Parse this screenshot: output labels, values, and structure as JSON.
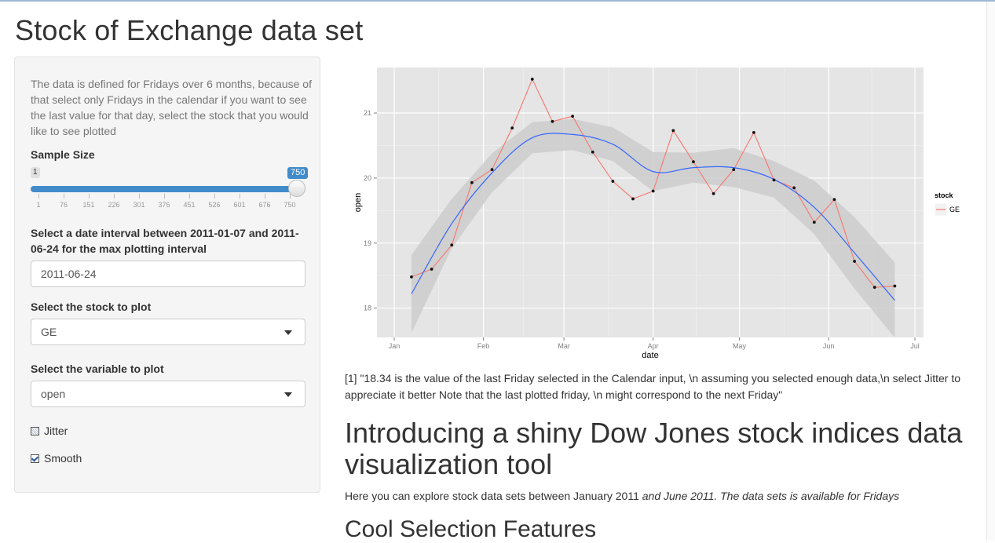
{
  "page": {
    "title": "Stock of Exchange data set"
  },
  "sidebar": {
    "description": "The data is defined for Fridays over 6 months, because of that select only Fridays in the calendar if you want to see the last value for that day, select the stock that you would like to see plotted",
    "sample_size": {
      "label": "Sample Size",
      "min_label": "1",
      "value_label": "750",
      "value": 750,
      "min": 1,
      "max": 750,
      "ticks": [
        "1",
        "76",
        "151",
        "226",
        "301",
        "376",
        "451",
        "526",
        "601",
        "676",
        "750"
      ]
    },
    "date": {
      "label": "Select a date interval between 2011-01-07 and 2011-06-24 for the max plotting interval",
      "value": "2011-06-24"
    },
    "stock": {
      "label": "Select the stock to plot",
      "value": "GE"
    },
    "variable": {
      "label": "Select the variable to plot",
      "value": "open"
    },
    "jitter": {
      "label": "Jitter",
      "checked": true
    },
    "smooth": {
      "label": "Smooth",
      "checked": true
    }
  },
  "chart_data": {
    "type": "line",
    "xlabel": "date",
    "ylabel": "open",
    "x_ticks": [
      "Jan",
      "Feb",
      "Mar",
      "Apr",
      "May",
      "Jun",
      "Jul"
    ],
    "x_tick_dates": [
      "2011-01-01",
      "2011-02-01",
      "2011-03-01",
      "2011-04-01",
      "2011-05-01",
      "2011-06-01",
      "2011-07-01"
    ],
    "y_ticks": [
      18,
      19,
      20,
      21
    ],
    "xlim": [
      "2010-12-26",
      "2011-07-04"
    ],
    "ylim": [
      17.55,
      21.7
    ],
    "grid": true,
    "legend_position": "right",
    "legend": {
      "title": "stock",
      "entries": [
        "GE"
      ]
    },
    "series": [
      {
        "name": "GE",
        "color": "#f8766d",
        "x": [
          "2011-01-07",
          "2011-01-14",
          "2011-01-21",
          "2011-01-28",
          "2011-02-04",
          "2011-02-11",
          "2011-02-18",
          "2011-02-25",
          "2011-03-04",
          "2011-03-11",
          "2011-03-18",
          "2011-03-25",
          "2011-04-01",
          "2011-04-08",
          "2011-04-15",
          "2011-04-22",
          "2011-04-29",
          "2011-05-06",
          "2011-05-13",
          "2011-05-20",
          "2011-05-27",
          "2011-06-03",
          "2011-06-10",
          "2011-06-17",
          "2011-06-24"
        ],
        "y": [
          18.48,
          18.6,
          18.97,
          19.93,
          20.13,
          20.77,
          21.52,
          20.87,
          20.95,
          20.4,
          19.95,
          19.68,
          19.8,
          20.73,
          20.25,
          19.76,
          20.13,
          20.7,
          19.97,
          19.85,
          19.32,
          19.67,
          18.72,
          18.32,
          18.34
        ]
      }
    ],
    "smooth": {
      "color": "#3366ff",
      "band_color": "#cccccc",
      "x": [
        "2011-01-07",
        "2011-01-21",
        "2011-02-04",
        "2011-02-18",
        "2011-03-04",
        "2011-03-18",
        "2011-04-01",
        "2011-04-15",
        "2011-04-29",
        "2011-05-13",
        "2011-05-27",
        "2011-06-10",
        "2011-06-24"
      ],
      "y": [
        18.22,
        19.3,
        20.08,
        20.62,
        20.67,
        20.52,
        20.1,
        20.16,
        20.16,
        19.98,
        19.55,
        18.85,
        18.12
      ],
      "lower": [
        17.62,
        18.92,
        19.78,
        20.38,
        20.43,
        20.26,
        19.8,
        19.93,
        19.86,
        19.7,
        19.14,
        18.3,
        17.55
      ],
      "upper": [
        18.82,
        19.68,
        20.38,
        20.86,
        20.91,
        20.78,
        20.4,
        20.39,
        20.46,
        20.26,
        19.96,
        19.4,
        18.7
      ]
    }
  },
  "output_text": "[1] \"18.34 is the value of the last Friday selected in the Calendar input, \\n assuming you selected enough data,\\n select Jitter to appreciate it better Note that the last plotted friday, \\n might correspond to the next Friday\"",
  "intro": {
    "heading": "Introducing a shiny Dow Jones stock indices data visualization tool",
    "para_prefix": "Here you can explore stock data sets between January 2011 ",
    "para_italic": "and June 2011. The data sets is available for Fridays",
    "subheading": "Cool Selection Features"
  }
}
